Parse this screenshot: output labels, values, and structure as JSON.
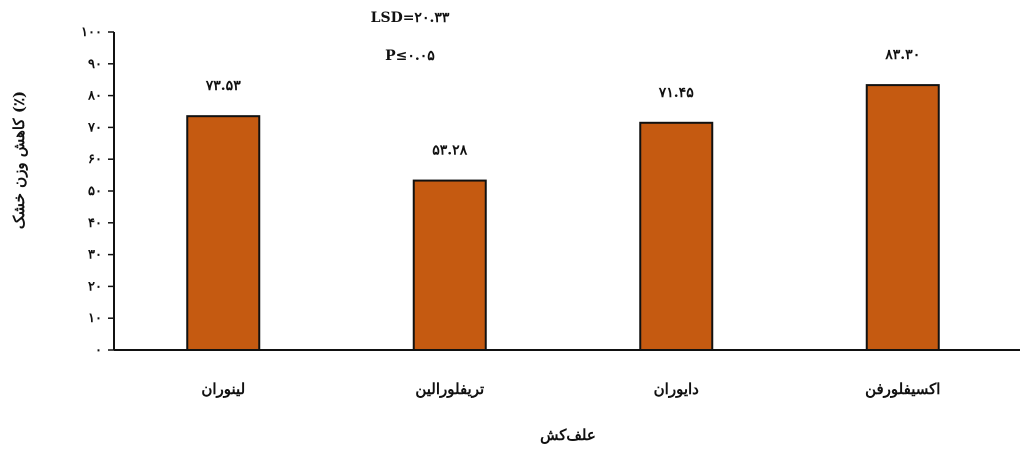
{
  "chart_data": {
    "type": "bar",
    "categories": [
      "لینوران",
      "تریفلورالین",
      "دایوران",
      "اکسیفلورفن"
    ],
    "values": [
      73.53,
      53.28,
      71.45,
      83.3
    ],
    "data_labels": [
      "۷۳.۵۳",
      "۵۳.۲۸",
      "۷۱.۴۵",
      "۸۳.۳۰"
    ],
    "xlabel": "علف‌کش",
    "ylabel": "کاهش وزن خشک (٪)",
    "ylim": [
      0,
      100
    ],
    "yticks": [
      0,
      10,
      20,
      30,
      40,
      50,
      60,
      70,
      80,
      90,
      100
    ],
    "ytick_labels": [
      "۰",
      "۱۰",
      "۲۰",
      "۳۰",
      "۴۰",
      "۵۰",
      "۶۰",
      "۷۰",
      "۸۰",
      "۹۰",
      "۱۰۰"
    ],
    "annotations": [
      "LSD=۲۰.۳۳",
      "P≤۰.۰۵"
    ],
    "bar_color": "#c55a11",
    "grid": false,
    "legend": "none"
  }
}
